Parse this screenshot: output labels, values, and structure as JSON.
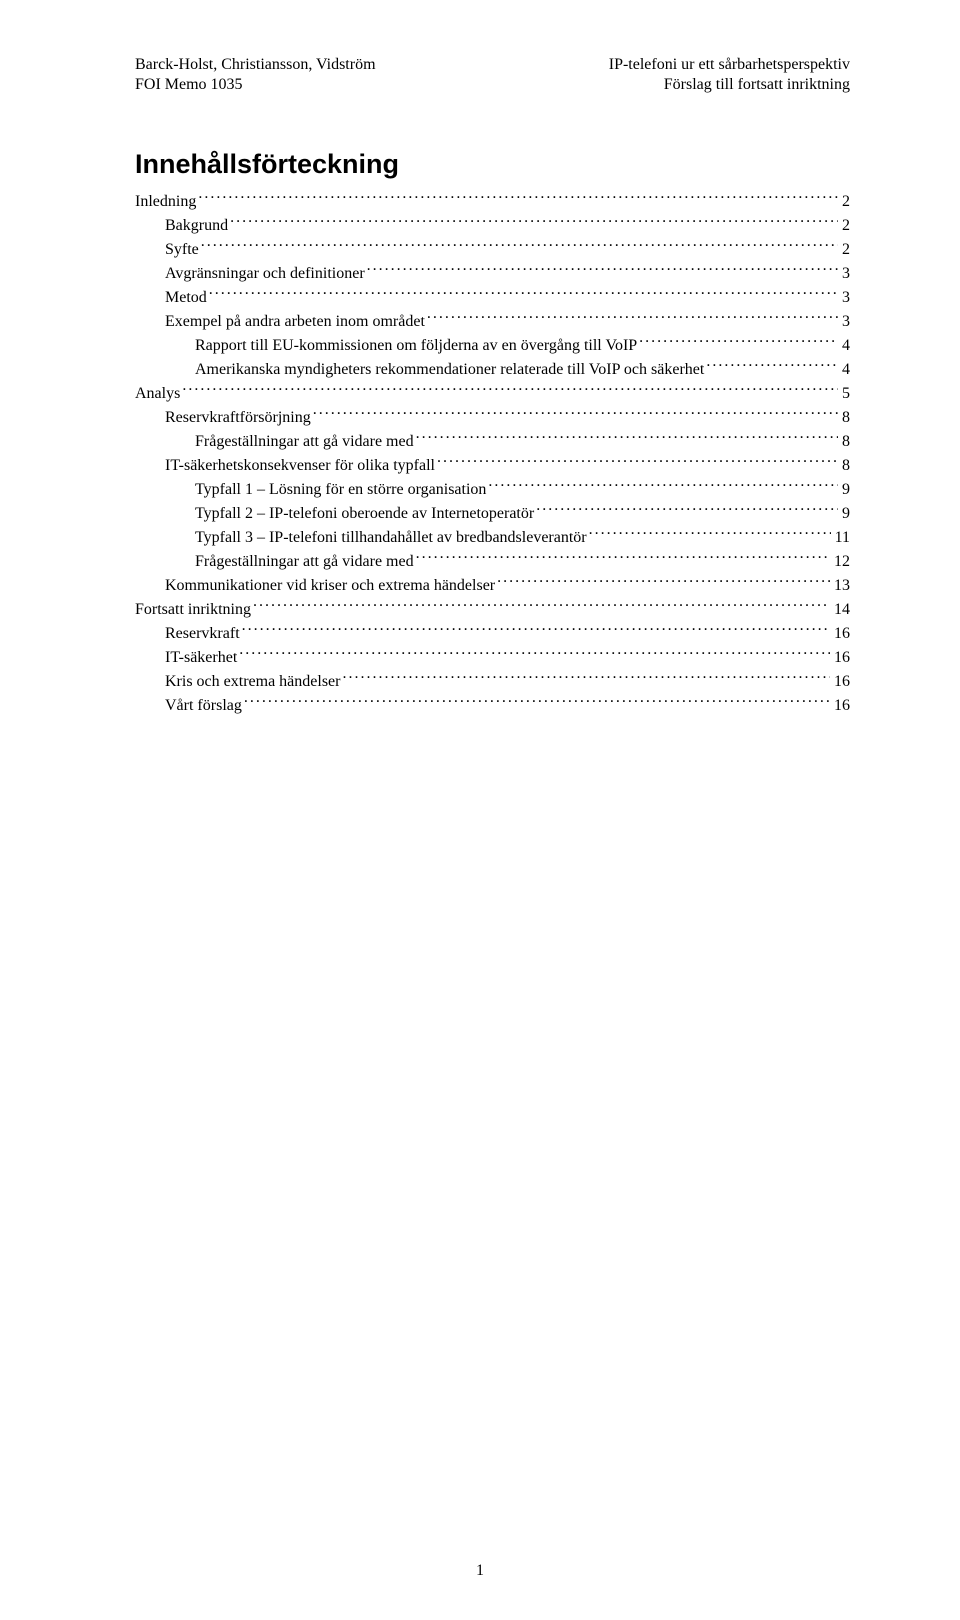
{
  "header": {
    "left_line1": "Barck-Holst, Christiansson, Vidström",
    "left_line2": "FOI Memo 1035",
    "right_line1": "IP-telefoni ur ett sårbarhetsperspektiv",
    "right_line2": "Förslag till fortsatt inriktning"
  },
  "title": "Innehållsförteckning",
  "toc": [
    {
      "label": "Inledning",
      "page": "2",
      "indent": 0
    },
    {
      "label": "Bakgrund",
      "page": "2",
      "indent": 1
    },
    {
      "label": "Syfte",
      "page": "2",
      "indent": 1
    },
    {
      "label": "Avgränsningar och definitioner",
      "page": "3",
      "indent": 1
    },
    {
      "label": "Metod",
      "page": "3",
      "indent": 1
    },
    {
      "label": "Exempel på andra arbeten inom området",
      "page": "3",
      "indent": 1
    },
    {
      "label": "Rapport till EU-kommissionen om följderna av en övergång till VoIP",
      "page": "4",
      "indent": 2
    },
    {
      "label": "Amerikanska myndigheters rekommendationer relaterade till VoIP och säkerhet",
      "page": "4",
      "indent": 2
    },
    {
      "label": "Analys",
      "page": "5",
      "indent": 0
    },
    {
      "label": "Reservkraftförsörjning",
      "page": "8",
      "indent": 1
    },
    {
      "label": "Frågeställningar att gå vidare med",
      "page": "8",
      "indent": 2
    },
    {
      "label": "IT-säkerhetskonsekvenser för olika typfall",
      "page": "8",
      "indent": 1
    },
    {
      "label": "Typfall 1 – Lösning för en större organisation",
      "page": "9",
      "indent": 2
    },
    {
      "label": "Typfall 2 – IP-telefoni oberoende av Internetoperatör",
      "page": "9",
      "indent": 2
    },
    {
      "label": "Typfall 3 – IP-telefoni tillhandahållet av bredbandsleverantör",
      "page": "11",
      "indent": 2
    },
    {
      "label": "Frågeställningar att gå vidare med",
      "page": "12",
      "indent": 2
    },
    {
      "label": "Kommunikationer vid kriser och extrema händelser",
      "page": "13",
      "indent": 1
    },
    {
      "label": "Fortsatt inriktning",
      "page": "14",
      "indent": 0
    },
    {
      "label": "Reservkraft",
      "page": "16",
      "indent": 1
    },
    {
      "label": "IT-säkerhet",
      "page": "16",
      "indent": 1
    },
    {
      "label": "Kris och extrema händelser",
      "page": "16",
      "indent": 1
    },
    {
      "label": "Vårt förslag",
      "page": "16",
      "indent": 1
    }
  ],
  "page_number": "1",
  "colors": {
    "background": "#ffffff",
    "text": "#000000"
  },
  "fonts": {
    "body_family": "Times New Roman",
    "body_size_pt": 12,
    "title_family": "Arial",
    "title_size_pt": 20,
    "title_weight": "bold"
  }
}
